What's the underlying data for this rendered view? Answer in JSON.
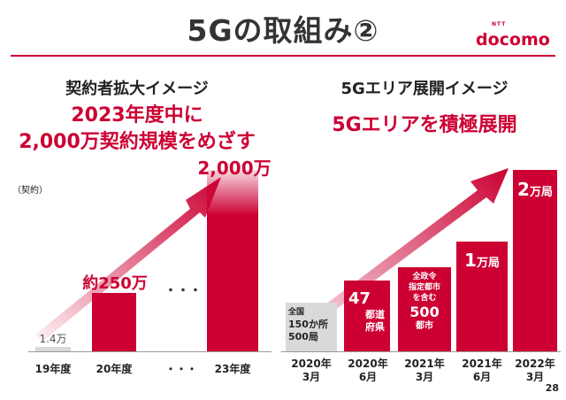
{
  "brand": {
    "name": "docomo",
    "ntt": "NTT",
    "color": "#cc0033"
  },
  "title": "5Gの取組み②",
  "page_number": "28",
  "left": {
    "section_title": "契約者拡大イメージ",
    "headline_line1": "2023年度中に",
    "headline_line2": "2,000万契約規模をめざす",
    "unit": "（契約）",
    "ellipsis_label": "・・・",
    "bars": [
      {
        "category": "19年度",
        "label": "1.4万"
      },
      {
        "category": "20年度",
        "label": "約250万"
      },
      {
        "category": "・・・",
        "label": "・・・"
      },
      {
        "category": "23年度",
        "label": "2,000万"
      }
    ]
  },
  "right": {
    "section_title": "5Gエリア展開イメージ",
    "headline": "5Gエリアを積極展開",
    "bars": [
      {
        "year": "2020年",
        "month": "3月",
        "box": {
          "line1": "全国",
          "line2": "150か所",
          "line3": "500局"
        }
      },
      {
        "year": "2020年",
        "month": "6月",
        "box": {
          "num": "47",
          "line1": "都道",
          "line2": "府県"
        }
      },
      {
        "year": "2021年",
        "month": "3月",
        "box": {
          "line1": "全政令",
          "line2": "指定都市",
          "line3": "を含む",
          "num": "500",
          "line4": "都市"
        }
      },
      {
        "year": "2021年",
        "month": "6月",
        "box": {
          "num": "1",
          "unit": "万局"
        }
      },
      {
        "year": "2022年",
        "month": "3月",
        "box": {
          "num": "2",
          "unit": "万局"
        }
      }
    ]
  },
  "chart_data": [
    {
      "type": "bar",
      "title": "契約者拡大イメージ",
      "ylabel": "（契約）",
      "categories": [
        "19年度",
        "20年度",
        "・・・",
        "23年度"
      ],
      "values": [
        14000,
        2500000,
        null,
        20000000
      ],
      "labels": [
        "1.4万",
        "約250万",
        "・・・",
        "2,000万"
      ]
    },
    {
      "type": "bar",
      "title": "5Gエリア展開イメージ",
      "categories": [
        "2020年 3月",
        "2020年 6月",
        "2021年 3月",
        "2021年 6月",
        "2022年 3月"
      ],
      "labels": [
        "全国 150か所 500局",
        "47 都道府県",
        "全政令指定都市を含む 500 都市",
        "1万局",
        "2万局"
      ]
    }
  ]
}
